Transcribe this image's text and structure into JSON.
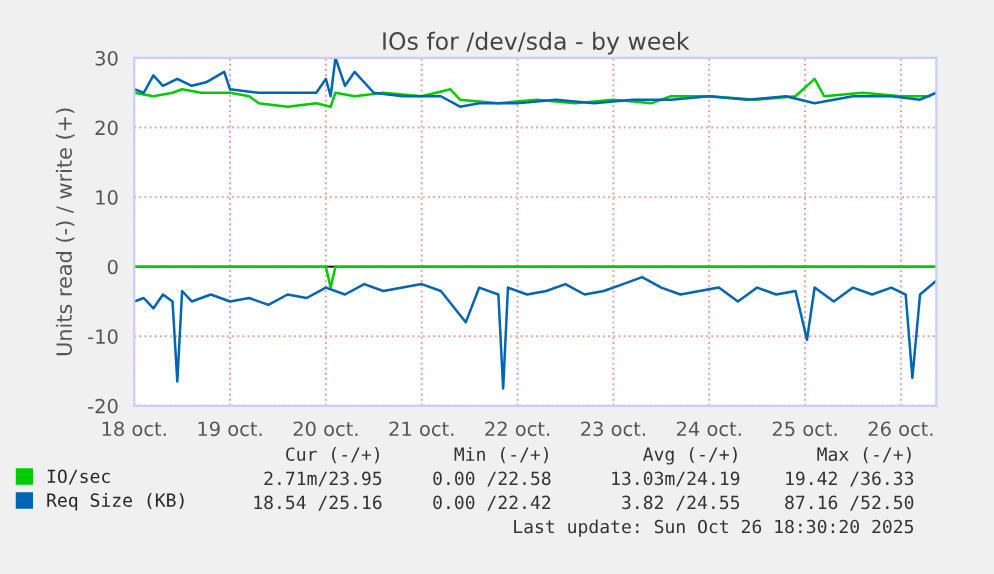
{
  "chart_data": {
    "type": "line",
    "title": "IOs for /dev/sda - by week",
    "ylabel": "Units read (-) / write (+)",
    "xlim": [
      "2025-10-18",
      "2025-10-26T08:53"
    ],
    "xticks": [
      {
        "value": "2025-10-18",
        "label": "18 oct."
      },
      {
        "value": "2025-10-19",
        "label": "19 oct."
      },
      {
        "value": "2025-10-20",
        "label": "20 oct."
      },
      {
        "value": "2025-10-21",
        "label": "21 oct."
      },
      {
        "value": "2025-10-22",
        "label": "22 oct."
      },
      {
        "value": "2025-10-23",
        "label": "23 oct."
      },
      {
        "value": "2025-10-24",
        "label": "24 oct."
      },
      {
        "value": "2025-10-25",
        "label": "25 oct."
      },
      {
        "value": "2025-10-26",
        "label": "26 oct."
      }
    ],
    "ylim": [
      -20,
      30
    ],
    "yticks": [
      -20,
      -10,
      0,
      10,
      20,
      30
    ],
    "grid": true,
    "legend": "bottom left",
    "ref_lines": [
      {
        "axis": "y",
        "value": 0,
        "color": "#000000"
      }
    ],
    "series": [
      {
        "name": "IO/sec",
        "color": "#00cc00",
        "x": [
          "2025-10-18T00:00",
          "2025-10-18T04:48",
          "2025-10-18T09:36",
          "2025-10-18T12:00",
          "2025-10-18T16:48",
          "2025-10-19T00:00",
          "2025-10-19T04:48",
          "2025-10-19T07:12",
          "2025-10-19T14:24",
          "2025-10-19T21:36",
          "2025-10-20T01:12",
          "2025-10-20T02:24",
          "2025-10-20T07:12",
          "2025-10-20T14:24",
          "2025-10-21T00:00",
          "2025-10-21T07:12",
          "2025-10-21T09:36",
          "2025-10-21T19:12",
          "2025-10-22T04:48",
          "2025-10-22T14:24",
          "2025-10-23T00:00",
          "2025-10-23T09:36",
          "2025-10-23T14:24",
          "2025-10-24T00:00",
          "2025-10-24T12:00",
          "2025-10-24T21:36",
          "2025-10-25T02:24",
          "2025-10-25T04:48",
          "2025-10-25T14:24",
          "2025-10-26T00:00",
          "2025-10-26T07:12"
        ],
        "values": [
          25,
          24.5,
          25,
          25.5,
          25,
          25,
          24.5,
          23.5,
          23,
          23.5,
          23,
          25,
          24.5,
          25,
          24.5,
          25.5,
          24,
          23.5,
          24,
          23.5,
          24,
          23.5,
          24.5,
          24.5,
          24,
          24.5,
          27,
          24.5,
          25,
          24.5,
          24.5
        ]
      },
      {
        "color": "#00cc00",
        "x": [
          "2025-10-18T00:00",
          "2025-10-20T00:00",
          "2025-10-20T01:12",
          "2025-10-20T02:24",
          "2025-10-26T08:53"
        ],
        "values": [
          0,
          0,
          -3,
          0,
          0
        ]
      },
      {
        "name": "Req Size (KB)",
        "color": "#0066b3",
        "x": [
          "2025-10-18T00:00",
          "2025-10-18T02:24",
          "2025-10-18T04:48",
          "2025-10-18T07:12",
          "2025-10-18T10:48",
          "2025-10-18T14:24",
          "2025-10-18T18:00",
          "2025-10-18T22:33",
          "2025-10-19T00:00",
          "2025-10-19T07:12",
          "2025-10-19T14:24",
          "2025-10-19T21:36",
          "2025-10-20T00:00",
          "2025-10-20T01:12",
          "2025-10-20T02:24",
          "2025-10-20T04:48",
          "2025-10-20T07:12",
          "2025-10-20T12:00",
          "2025-10-20T19:12",
          "2025-10-21T04:48",
          "2025-10-21T09:36",
          "2025-10-21T14:24",
          "2025-10-22T00:00",
          "2025-10-22T09:36",
          "2025-10-22T19:12",
          "2025-10-23T04:48",
          "2025-10-23T14:24",
          "2025-10-24T00:00",
          "2025-10-24T09:36",
          "2025-10-24T19:12",
          "2025-10-25T02:24",
          "2025-10-25T12:00",
          "2025-10-25T21:36",
          "2025-10-26T04:48",
          "2025-10-26T08:53"
        ],
        "values": [
          25.5,
          25,
          27.5,
          26,
          27,
          26,
          26.5,
          28,
          25.5,
          25,
          25,
          25,
          27,
          24.5,
          30,
          26,
          28,
          25,
          24.5,
          24.5,
          23,
          23.5,
          23.5,
          24,
          23.5,
          24,
          24,
          24.5,
          24,
          24.5,
          23.5,
          24.5,
          24.5,
          24,
          25
        ]
      },
      {
        "color": "#0066b3",
        "x": [
          "2025-10-18T00:00",
          "2025-10-18T02:24",
          "2025-10-18T04:48",
          "2025-10-18T07:12",
          "2025-10-18T09:36",
          "2025-10-18T10:48",
          "2025-10-18T12:00",
          "2025-10-18T14:24",
          "2025-10-18T19:12",
          "2025-10-19T00:00",
          "2025-10-19T04:48",
          "2025-10-19T09:36",
          "2025-10-19T14:24",
          "2025-10-19T19:12",
          "2025-10-20T00:00",
          "2025-10-20T04:48",
          "2025-10-20T09:36",
          "2025-10-20T14:24",
          "2025-10-20T19:12",
          "2025-10-21T00:00",
          "2025-10-21T04:48",
          "2025-10-21T11:02",
          "2025-10-21T14:24",
          "2025-10-21T19:12",
          "2025-10-21T20:24",
          "2025-10-21T21:36",
          "2025-10-22T02:24",
          "2025-10-22T07:12",
          "2025-10-22T12:00",
          "2025-10-22T16:48",
          "2025-10-22T21:36",
          "2025-10-23T02:24",
          "2025-10-23T07:12",
          "2025-10-23T12:00",
          "2025-10-23T16:48",
          "2025-10-23T21:36",
          "2025-10-24T02:24",
          "2025-10-24T07:12",
          "2025-10-24T12:00",
          "2025-10-24T16:48",
          "2025-10-24T21:36",
          "2025-10-25T00:29",
          "2025-10-25T02:24",
          "2025-10-25T07:12",
          "2025-10-25T12:00",
          "2025-10-25T16:48",
          "2025-10-25T21:36",
          "2025-10-26T01:12",
          "2025-10-26T02:53",
          "2025-10-26T04:48",
          "2025-10-26T08:53"
        ],
        "values": [
          -5,
          -4.5,
          -6,
          -4,
          -5,
          -16.5,
          -3.5,
          -5,
          -4,
          -5,
          -4.5,
          -5.5,
          -4,
          -4.5,
          -3,
          -4,
          -2.5,
          -3.5,
          -3,
          -2.5,
          -3.5,
          -8,
          -3,
          -4,
          -17.5,
          -3,
          -4,
          -3.5,
          -2.5,
          -4,
          -3.5,
          -2.5,
          -1.5,
          -3,
          -4,
          -3.5,
          -3,
          -5,
          -3,
          -4,
          -3.5,
          -10.5,
          -3,
          -5,
          -3,
          -4,
          -3,
          -4,
          -16,
          -4,
          -2
        ]
      }
    ],
    "annotations": [
      "Cur (-/+)",
      "Min (-/+)",
      "Avg (-/+)",
      "Max (-/+)",
      "2.71m/23.95",
      "0.00 /22.58",
      "13.03m/24.19",
      "19.42 /36.33",
      "18.54 /25.16",
      "0.00 /22.42",
      "3.82 /24.55",
      "87.16 /52.50",
      "Last update: Sun Oct 26 18:30:20 2025"
    ]
  }
}
